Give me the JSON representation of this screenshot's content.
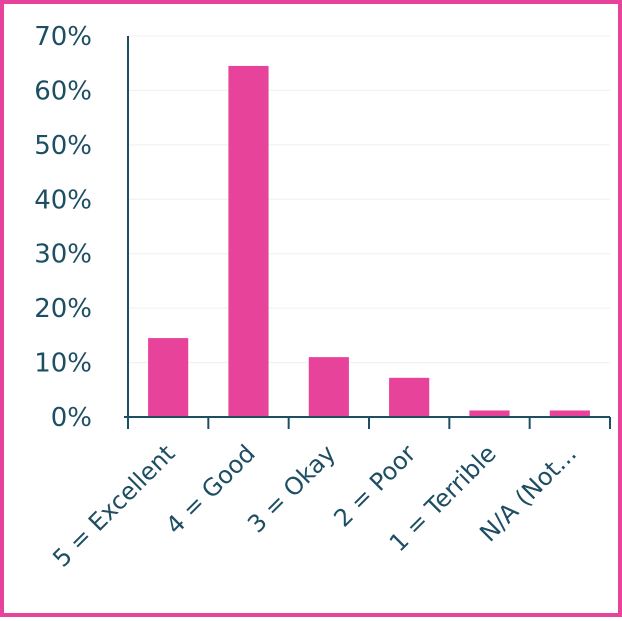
{
  "chart_data": {
    "type": "bar",
    "categories": [
      "5 = Excellent",
      "4 = Good",
      "3 = Okay",
      "2 = Poor",
      "1 = Terrible",
      "N/A (Not..."
    ],
    "values": [
      14.5,
      64.5,
      11,
      7.2,
      1.2,
      1.2
    ],
    "ylim": [
      0,
      70
    ],
    "yticks": [
      0,
      10,
      20,
      30,
      40,
      50,
      60,
      70
    ],
    "ytick_labels": [
      "0%",
      "10%",
      "20%",
      "30%",
      "40%",
      "50%",
      "60%",
      "70%"
    ],
    "grid": true,
    "colors": {
      "bar": "#e8439a",
      "axis": "#1d4e63",
      "frame": "#e8439a",
      "grid": "#efefef"
    }
  }
}
